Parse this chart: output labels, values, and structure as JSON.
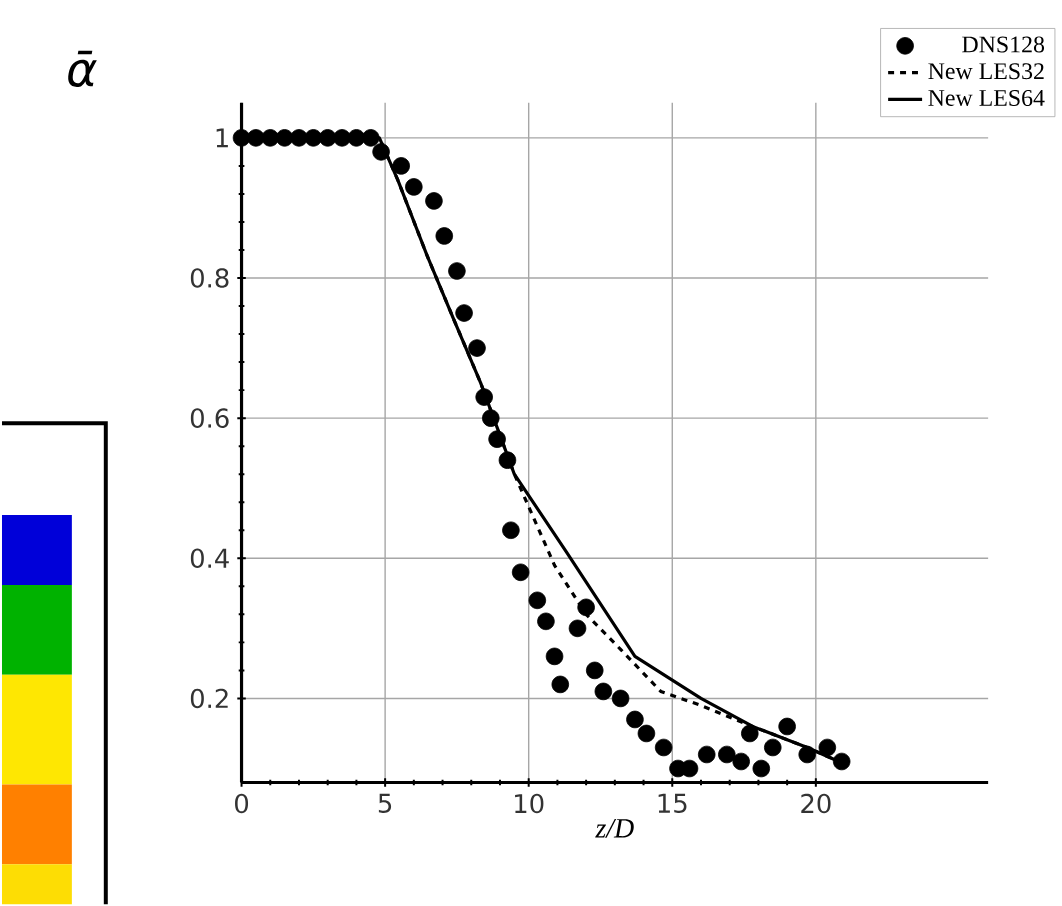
{
  "chart_data": {
    "type": "line",
    "ylabel": "ᾱ",
    "xlabel": "z/D",
    "xlim": [
      0,
      26
    ],
    "ylim": [
      0.08,
      1.05
    ],
    "xticks": [
      0,
      5,
      10,
      15,
      20
    ],
    "yticks": [
      {
        "value": 0.2,
        "label": "0.2"
      },
      {
        "value": 0.4,
        "label": "0.4"
      },
      {
        "value": 0.6,
        "label": "0.6"
      },
      {
        "value": 0.8,
        "label": "0.8"
      },
      1
    ],
    "grid": true,
    "legend": "top right",
    "series": [
      {
        "name": "DNS128",
        "type": "scatter",
        "marker": "circle",
        "color": "#000000",
        "x": [
          0,
          0.5,
          1,
          1.5,
          2,
          2.5,
          3,
          3.5,
          4,
          4.5,
          4.86,
          5.56,
          6.0,
          6.7,
          7.06,
          7.5,
          7.75,
          8.2,
          8.45,
          8.68,
          8.9,
          9.26,
          9.38,
          9.72,
          10.3,
          10.6,
          10.9,
          11.1,
          11.7,
          12.0,
          12.3,
          12.6,
          13.2,
          13.7,
          14.1,
          14.7,
          15.2,
          15.6,
          16.2,
          16.9,
          17.4,
          18.1,
          17.7,
          18.5,
          19.0,
          19.7,
          20.4,
          20.9
        ],
        "values": [
          1,
          1,
          1,
          1,
          1,
          1,
          1,
          1,
          1,
          1,
          0.98,
          0.96,
          0.93,
          0.91,
          0.86,
          0.81,
          0.75,
          0.7,
          0.63,
          0.6,
          0.57,
          0.54,
          0.44,
          0.38,
          0.34,
          0.31,
          0.26,
          0.22,
          0.3,
          0.33,
          0.24,
          0.21,
          0.2,
          0.17,
          0.15,
          0.13,
          0.1,
          0.1,
          0.12,
          0.12,
          0.11,
          0.1,
          0.15,
          0.13,
          0.16,
          0.12,
          0.13,
          0.11
        ]
      },
      {
        "name": "New LES32",
        "type": "line",
        "line_style": "dashed",
        "color": "#000000",
        "x": [
          0,
          4.8,
          5.44,
          6.48,
          7.4,
          8.33,
          9.5,
          10.9,
          12.0,
          13.2,
          14.6,
          16.0,
          17.8,
          19.7,
          20.8
        ],
        "values": [
          1,
          1,
          0.94,
          0.83,
          0.74,
          0.65,
          0.52,
          0.39,
          0.32,
          0.27,
          0.21,
          0.19,
          0.16,
          0.13,
          0.11
        ]
      },
      {
        "name": "New LES64",
        "line_style": "solid",
        "color": "#000000",
        "x": [
          0,
          4.8,
          5.44,
          6.48,
          7.4,
          8.33,
          9.5,
          11.3,
          13.7,
          16.0,
          17.8,
          19.7,
          20.8
        ],
        "values": [
          1,
          1,
          0.94,
          0.83,
          0.74,
          0.65,
          0.52,
          0.41,
          0.26,
          0.2,
          0.16,
          0.13,
          0.11
        ]
      }
    ]
  }
}
